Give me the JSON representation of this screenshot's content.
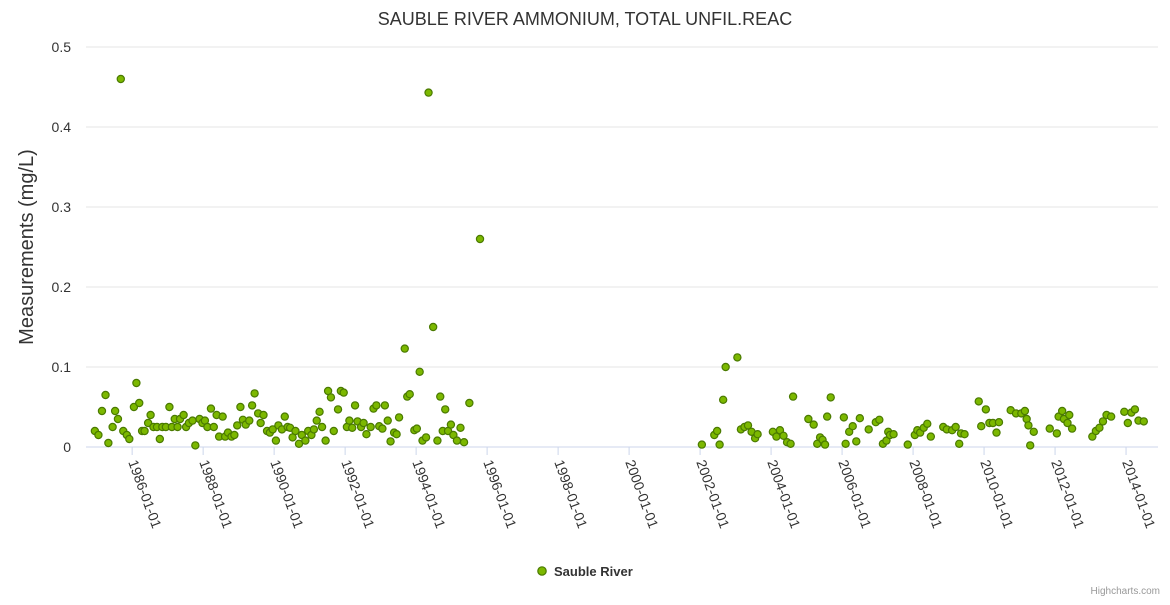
{
  "chart_data": {
    "type": "scatter",
    "title": "SAUBLE RIVER AMMONIUM, TOTAL UNFIL.REAC",
    "ylabel": "Measurements (mg/L)",
    "xlabel": "",
    "ylim": [
      0,
      0.5
    ],
    "yticks": [
      0,
      0.1,
      0.2,
      0.3,
      0.4,
      0.5
    ],
    "ytick_labels": [
      "0",
      "0.1",
      "0.2",
      "0.3",
      "0.4",
      "0.5"
    ],
    "xlim": [
      1984.7,
      2014.9
    ],
    "xticks": [
      1986,
      1988,
      1990,
      1992,
      1994,
      1996,
      1998,
      2000,
      2002,
      2004,
      2006,
      2008,
      2010,
      2012,
      2014
    ],
    "xtick_labels": [
      "1986-01-01",
      "1988-01-01",
      "1990-01-01",
      "1992-01-01",
      "1994-01-01",
      "1996-01-01",
      "1998-01-01",
      "2000-01-01",
      "2002-01-01",
      "2004-01-01",
      "2006-01-01",
      "2008-01-01",
      "2010-01-01",
      "2012-01-01",
      "2014-01-01"
    ],
    "grid": true,
    "legend_position": "bottom-center",
    "series": [
      {
        "name": "Sauble River",
        "color": "#7cb800",
        "edge_color": "#4a7a00",
        "points": [
          [
            1984.95,
            0.02
          ],
          [
            1985.05,
            0.015
          ],
          [
            1985.15,
            0.045
          ],
          [
            1985.25,
            0.065
          ],
          [
            1985.33,
            0.005
          ],
          [
            1985.45,
            0.025
          ],
          [
            1985.52,
            0.045
          ],
          [
            1985.6,
            0.035
          ],
          [
            1985.68,
            0.46
          ],
          [
            1985.75,
            0.02
          ],
          [
            1985.85,
            0.015
          ],
          [
            1985.92,
            0.01
          ],
          [
            1986.05,
            0.05
          ],
          [
            1986.12,
            0.08
          ],
          [
            1986.2,
            0.055
          ],
          [
            1986.28,
            0.02
          ],
          [
            1986.35,
            0.02
          ],
          [
            1986.45,
            0.03
          ],
          [
            1986.52,
            0.04
          ],
          [
            1986.6,
            0.025
          ],
          [
            1986.7,
            0.025
          ],
          [
            1986.78,
            0.01
          ],
          [
            1986.85,
            0.025
          ],
          [
            1986.95,
            0.025
          ],
          [
            1987.05,
            0.05
          ],
          [
            1987.12,
            0.025
          ],
          [
            1987.2,
            0.035
          ],
          [
            1987.28,
            0.025
          ],
          [
            1987.35,
            0.035
          ],
          [
            1987.45,
            0.04
          ],
          [
            1987.52,
            0.025
          ],
          [
            1987.6,
            0.03
          ],
          [
            1987.7,
            0.033
          ],
          [
            1987.78,
            0.002
          ],
          [
            1987.9,
            0.035
          ],
          [
            1987.98,
            0.03
          ],
          [
            1988.05,
            0.033
          ],
          [
            1988.12,
            0.025
          ],
          [
            1988.22,
            0.048
          ],
          [
            1988.3,
            0.025
          ],
          [
            1988.38,
            0.04
          ],
          [
            1988.45,
            0.013
          ],
          [
            1988.55,
            0.038
          ],
          [
            1988.62,
            0.013
          ],
          [
            1988.7,
            0.018
          ],
          [
            1988.8,
            0.013
          ],
          [
            1988.88,
            0.015
          ],
          [
            1988.96,
            0.027
          ],
          [
            1989.05,
            0.05
          ],
          [
            1989.12,
            0.034
          ],
          [
            1989.2,
            0.028
          ],
          [
            1989.3,
            0.033
          ],
          [
            1989.38,
            0.052
          ],
          [
            1989.45,
            0.067
          ],
          [
            1989.55,
            0.042
          ],
          [
            1989.62,
            0.03
          ],
          [
            1989.7,
            0.04
          ],
          [
            1989.8,
            0.02
          ],
          [
            1989.88,
            0.018
          ],
          [
            1989.96,
            0.022
          ],
          [
            1990.05,
            0.008
          ],
          [
            1990.12,
            0.027
          ],
          [
            1990.22,
            0.022
          ],
          [
            1990.3,
            0.038
          ],
          [
            1990.38,
            0.025
          ],
          [
            1990.45,
            0.024
          ],
          [
            1990.52,
            0.012
          ],
          [
            1990.6,
            0.02
          ],
          [
            1990.7,
            0.004
          ],
          [
            1990.78,
            0.015
          ],
          [
            1990.88,
            0.008
          ],
          [
            1990.96,
            0.02
          ],
          [
            1991.05,
            0.015
          ],
          [
            1991.12,
            0.022
          ],
          [
            1991.2,
            0.033
          ],
          [
            1991.28,
            0.044
          ],
          [
            1991.35,
            0.025
          ],
          [
            1991.45,
            0.008
          ],
          [
            1991.52,
            0.07
          ],
          [
            1991.6,
            0.062
          ],
          [
            1991.68,
            0.02
          ],
          [
            1991.8,
            0.047
          ],
          [
            1991.88,
            0.07
          ],
          [
            1991.96,
            0.068
          ],
          [
            1992.05,
            0.025
          ],
          [
            1992.12,
            0.033
          ],
          [
            1992.2,
            0.024
          ],
          [
            1992.28,
            0.052
          ],
          [
            1992.35,
            0.032
          ],
          [
            1992.45,
            0.025
          ],
          [
            1992.52,
            0.03
          ],
          [
            1992.6,
            0.016
          ],
          [
            1992.72,
            0.025
          ],
          [
            1992.8,
            0.048
          ],
          [
            1992.88,
            0.052
          ],
          [
            1992.96,
            0.026
          ],
          [
            1993.05,
            0.023
          ],
          [
            1993.12,
            0.052
          ],
          [
            1993.2,
            0.033
          ],
          [
            1993.28,
            0.007
          ],
          [
            1993.38,
            0.018
          ],
          [
            1993.45,
            0.016
          ],
          [
            1993.52,
            0.037
          ],
          [
            1993.68,
            0.123
          ],
          [
            1993.75,
            0.063
          ],
          [
            1993.82,
            0.066
          ],
          [
            1993.95,
            0.021
          ],
          [
            1994.02,
            0.023
          ],
          [
            1994.1,
            0.094
          ],
          [
            1994.18,
            0.008
          ],
          [
            1994.28,
            0.012
          ],
          [
            1994.35,
            0.443
          ],
          [
            1994.48,
            0.15
          ],
          [
            1994.6,
            0.008
          ],
          [
            1994.68,
            0.063
          ],
          [
            1994.75,
            0.02
          ],
          [
            1994.82,
            0.047
          ],
          [
            1994.9,
            0.02
          ],
          [
            1994.98,
            0.028
          ],
          [
            1995.05,
            0.015
          ],
          [
            1995.15,
            0.008
          ],
          [
            1995.25,
            0.024
          ],
          [
            1995.35,
            0.006
          ],
          [
            1995.5,
            0.055
          ],
          [
            1995.8,
            0.26
          ],
          [
            2002.05,
            0.003
          ],
          [
            2002.4,
            0.015
          ],
          [
            2002.48,
            0.02
          ],
          [
            2002.55,
            0.003
          ],
          [
            2002.65,
            0.059
          ],
          [
            2002.72,
            0.1
          ],
          [
            2003.05,
            0.112
          ],
          [
            2003.15,
            0.022
          ],
          [
            2003.25,
            0.025
          ],
          [
            2003.35,
            0.027
          ],
          [
            2003.45,
            0.019
          ],
          [
            2003.55,
            0.011
          ],
          [
            2003.62,
            0.016
          ],
          [
            2004.05,
            0.019
          ],
          [
            2004.15,
            0.013
          ],
          [
            2004.25,
            0.021
          ],
          [
            2004.35,
            0.014
          ],
          [
            2004.45,
            0.006
          ],
          [
            2004.55,
            0.004
          ],
          [
            2004.62,
            0.063
          ],
          [
            2005.05,
            0.035
          ],
          [
            2005.2,
            0.028
          ],
          [
            2005.3,
            0.004
          ],
          [
            2005.38,
            0.012
          ],
          [
            2005.45,
            0.009
          ],
          [
            2005.52,
            0.003
          ],
          [
            2005.58,
            0.038
          ],
          [
            2005.68,
            0.062
          ],
          [
            2006.05,
            0.037
          ],
          [
            2006.1,
            0.004
          ],
          [
            2006.2,
            0.019
          ],
          [
            2006.3,
            0.026
          ],
          [
            2006.4,
            0.007
          ],
          [
            2006.5,
            0.036
          ],
          [
            2006.75,
            0.022
          ],
          [
            2006.95,
            0.031
          ],
          [
            2007.05,
            0.034
          ],
          [
            2007.15,
            0.004
          ],
          [
            2007.25,
            0.008
          ],
          [
            2007.3,
            0.019
          ],
          [
            2007.35,
            0.015
          ],
          [
            2007.45,
            0.016
          ],
          [
            2007.85,
            0.003
          ],
          [
            2008.05,
            0.015
          ],
          [
            2008.12,
            0.021
          ],
          [
            2008.2,
            0.018
          ],
          [
            2008.3,
            0.024
          ],
          [
            2008.4,
            0.029
          ],
          [
            2008.5,
            0.013
          ],
          [
            2008.85,
            0.025
          ],
          [
            2008.95,
            0.022
          ],
          [
            2009.1,
            0.021
          ],
          [
            2009.2,
            0.025
          ],
          [
            2009.3,
            0.004
          ],
          [
            2009.35,
            0.017
          ],
          [
            2009.45,
            0.016
          ],
          [
            2009.85,
            0.057
          ],
          [
            2009.92,
            0.026
          ],
          [
            2010.05,
            0.047
          ],
          [
            2010.15,
            0.03
          ],
          [
            2010.25,
            0.03
          ],
          [
            2010.35,
            0.018
          ],
          [
            2010.42,
            0.031
          ],
          [
            2010.75,
            0.046
          ],
          [
            2010.9,
            0.042
          ],
          [
            2011.05,
            0.042
          ],
          [
            2011.15,
            0.045
          ],
          [
            2011.2,
            0.035
          ],
          [
            2011.25,
            0.027
          ],
          [
            2011.3,
            0.002
          ],
          [
            2011.4,
            0.019
          ],
          [
            2011.85,
            0.023
          ],
          [
            2012.05,
            0.017
          ],
          [
            2012.1,
            0.038
          ],
          [
            2012.2,
            0.045
          ],
          [
            2012.25,
            0.035
          ],
          [
            2012.35,
            0.03
          ],
          [
            2012.4,
            0.04
          ],
          [
            2012.48,
            0.023
          ],
          [
            2013.05,
            0.013
          ],
          [
            2013.15,
            0.02
          ],
          [
            2013.25,
            0.024
          ],
          [
            2013.35,
            0.032
          ],
          [
            2013.45,
            0.04
          ],
          [
            2013.58,
            0.038
          ],
          [
            2013.95,
            0.044
          ],
          [
            2014.05,
            0.03
          ],
          [
            2014.15,
            0.043
          ],
          [
            2014.25,
            0.047
          ],
          [
            2014.35,
            0.033
          ],
          [
            2014.5,
            0.032
          ]
        ]
      }
    ],
    "credit": "Highcharts.com"
  }
}
